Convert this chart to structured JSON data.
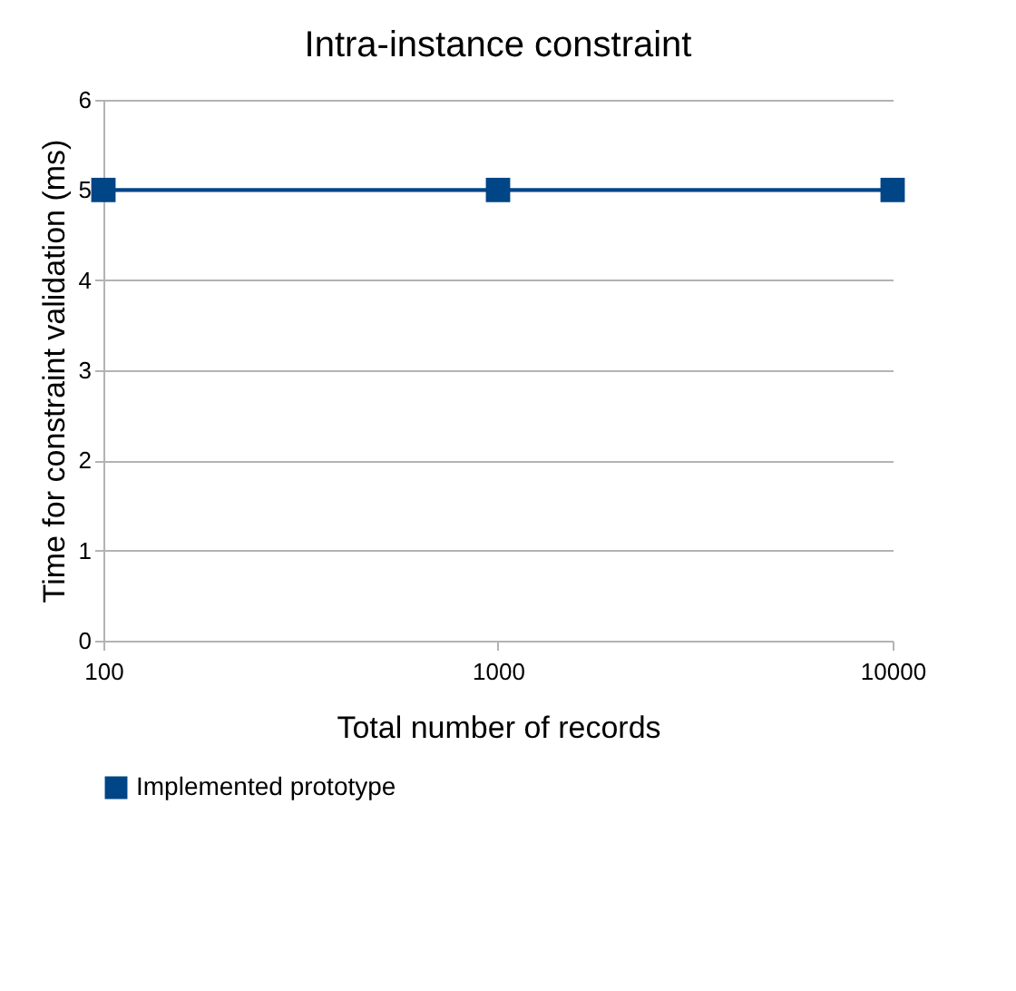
{
  "chart_data": {
    "type": "line",
    "title": "Intra-instance constraint",
    "xlabel": "Total number of records",
    "ylabel": "Time for constraint validation (ms)",
    "x": [
      100,
      1000,
      10000
    ],
    "series": [
      {
        "name": "Implemented prototype",
        "color": "#004586",
        "values": [
          5,
          5,
          5
        ]
      }
    ],
    "log": "x",
    "xlim": [
      100,
      10000
    ],
    "xticks": [
      100,
      1000,
      10000
    ],
    "ylim": [
      0,
      6
    ],
    "yticks": [
      0,
      1,
      2,
      3,
      4,
      5,
      6
    ],
    "grid": "y",
    "legend": "bottom",
    "marker": "square",
    "line_style": "solid"
  }
}
